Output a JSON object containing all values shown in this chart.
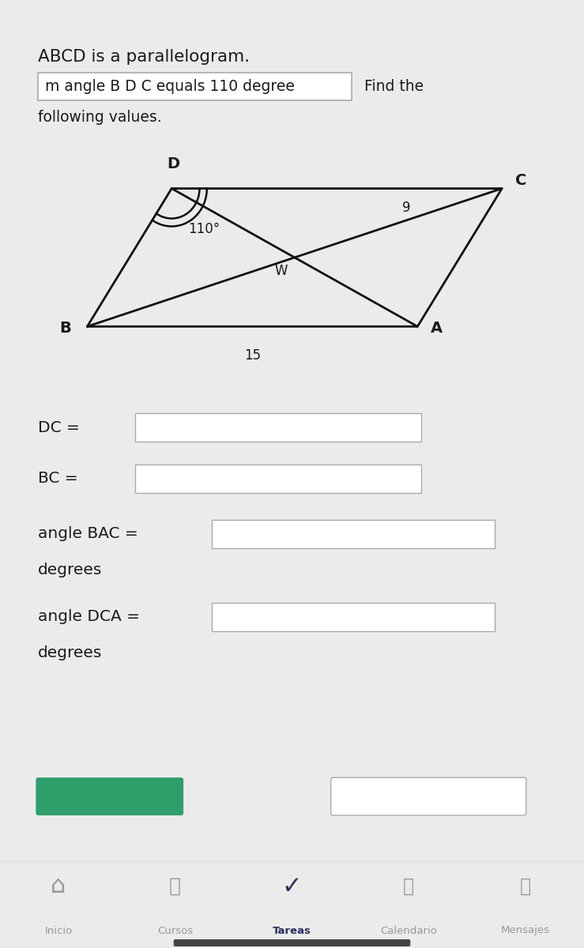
{
  "bg_color": "#ebebeb",
  "content_bg": "#ffffff",
  "title_text": "ABCD is a parallelogram.",
  "box_text": "m angle B D C equals 110 degree",
  "find_text": "Find the",
  "following_text": "following values.",
  "angle_label": "110°",
  "w_label": "W",
  "nine_label": "9",
  "fifteen_label": "15",
  "footer_items": [
    "Inicio",
    "Cursos",
    "Tareas",
    "Calendario",
    "Mensajes"
  ],
  "green_btn_color": "#2e9e6b",
  "line_color": "#111111",
  "text_color": "#1a1a1a",
  "input_border": "#aaaaaa",
  "card_shadow": "#cccccc"
}
